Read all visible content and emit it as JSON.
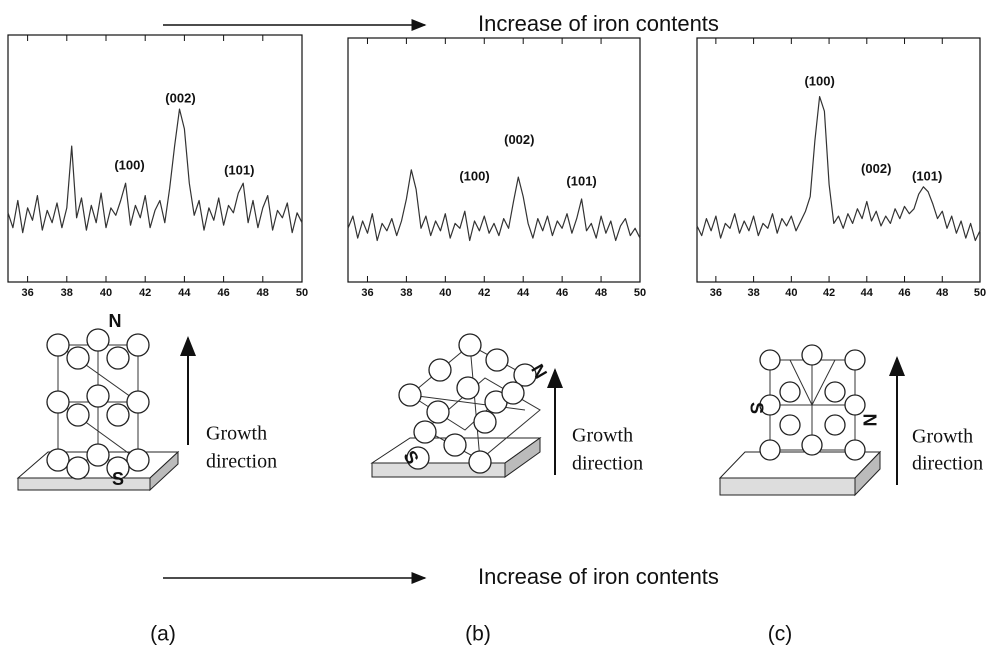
{
  "figure": {
    "top_caption": "Increase of iron contents",
    "bottom_caption": "Increase of iron contents",
    "panels": [
      {
        "label": "(a)",
        "north": "N",
        "south": "S",
        "growth": [
          "Growth",
          "direction"
        ]
      },
      {
        "label": "(b)",
        "north": "N",
        "south": "S",
        "growth": [
          "Growth",
          "direction"
        ]
      },
      {
        "label": "(c)",
        "north": "N",
        "south": "S",
        "growth": [
          "Growth",
          "direction"
        ]
      }
    ]
  },
  "chart_data": [
    {
      "type": "line",
      "xlim": [
        35,
        50
      ],
      "xticks": [
        36,
        38,
        40,
        42,
        44,
        46,
        48,
        50
      ],
      "ylim": [
        0,
        100
      ],
      "color": "#333333",
      "x": [
        35,
        35.25,
        35.5,
        35.75,
        36,
        36.25,
        36.5,
        36.75,
        37,
        37.25,
        37.5,
        37.75,
        38,
        38.25,
        38.5,
        38.75,
        39,
        39.25,
        39.5,
        39.75,
        40,
        40.25,
        40.5,
        40.75,
        41,
        41.25,
        41.5,
        41.75,
        42,
        42.25,
        42.5,
        42.75,
        43,
        43.25,
        43.5,
        43.75,
        44,
        44.25,
        44.5,
        44.75,
        45,
        45.25,
        45.5,
        45.75,
        46,
        46.25,
        46.5,
        46.75,
        47,
        47.25,
        47.5,
        47.75,
        48,
        48.25,
        48.5,
        48.75,
        49,
        49.25,
        49.5,
        49.75,
        50
      ],
      "values": [
        28,
        22,
        33,
        20,
        30,
        25,
        35,
        21,
        29,
        24,
        32,
        22,
        30,
        55,
        26,
        34,
        21,
        31,
        24,
        36,
        22,
        30,
        27,
        33,
        40,
        23,
        31,
        26,
        35,
        22,
        29,
        33,
        24,
        38,
        55,
        70,
        62,
        40,
        27,
        33,
        21,
        30,
        25,
        34,
        23,
        31,
        28,
        36,
        40,
        24,
        33,
        22,
        30,
        35,
        21,
        29,
        26,
        32,
        20,
        28,
        24
      ],
      "annotations": [
        {
          "text": "(100)",
          "x": 41.2,
          "y": 47
        },
        {
          "text": "(002)",
          "x": 43.8,
          "y": 74
        },
        {
          "text": "(101)",
          "x": 46.8,
          "y": 45
        }
      ]
    },
    {
      "type": "line",
      "xlim": [
        35,
        50
      ],
      "xticks": [
        36,
        38,
        40,
        42,
        44,
        46,
        48,
        50
      ],
      "ylim": [
        0,
        100
      ],
      "color": "#333333",
      "x": [
        35,
        35.25,
        35.5,
        35.75,
        36,
        36.25,
        36.5,
        36.75,
        37,
        37.25,
        37.5,
        37.75,
        38,
        38.25,
        38.5,
        38.75,
        39,
        39.25,
        39.5,
        39.75,
        40,
        40.25,
        40.5,
        40.75,
        41,
        41.25,
        41.5,
        41.75,
        42,
        42.25,
        42.5,
        42.75,
        43,
        43.25,
        43.5,
        43.75,
        44,
        44.25,
        44.5,
        44.75,
        45,
        45.25,
        45.5,
        45.75,
        46,
        46.25,
        46.5,
        46.75,
        47,
        47.25,
        47.5,
        47.75,
        48,
        48.25,
        48.5,
        48.75,
        49,
        49.25,
        49.5,
        49.75,
        50
      ],
      "values": [
        22,
        27,
        18,
        25,
        20,
        28,
        17,
        24,
        21,
        26,
        19,
        25,
        34,
        46,
        38,
        22,
        27,
        19,
        25,
        21,
        28,
        18,
        24,
        22,
        29,
        17,
        25,
        21,
        27,
        20,
        24,
        19,
        26,
        22,
        33,
        43,
        35,
        24,
        18,
        26,
        21,
        27,
        19,
        25,
        22,
        28,
        20,
        26,
        34,
        21,
        24,
        18,
        27,
        20,
        25,
        17,
        23,
        26,
        19,
        22,
        18
      ],
      "annotations": [
        {
          "text": "(100)",
          "x": 41.5,
          "y": 43
        },
        {
          "text": "(002)",
          "x": 43.8,
          "y": 58
        },
        {
          "text": "(101)",
          "x": 47,
          "y": 41
        }
      ]
    },
    {
      "type": "line",
      "xlim": [
        35,
        50
      ],
      "xticks": [
        36,
        38,
        40,
        42,
        44,
        46,
        48,
        50
      ],
      "ylim": [
        0,
        100
      ],
      "color": "#333333",
      "x": [
        35,
        35.25,
        35.5,
        35.75,
        36,
        36.25,
        36.5,
        36.75,
        37,
        37.25,
        37.5,
        37.75,
        38,
        38.25,
        38.5,
        38.75,
        39,
        39.25,
        39.5,
        39.75,
        40,
        40.25,
        40.5,
        40.75,
        41,
        41.25,
        41.5,
        41.75,
        42,
        42.25,
        42.5,
        42.75,
        43,
        43.25,
        43.5,
        43.75,
        44,
        44.25,
        44.5,
        44.75,
        45,
        45.25,
        45.5,
        45.75,
        46,
        46.25,
        46.5,
        46.75,
        47,
        47.25,
        47.5,
        47.75,
        48,
        48.25,
        48.5,
        48.75,
        49,
        49.25,
        49.5,
        49.75,
        50
      ],
      "values": [
        23,
        19,
        26,
        21,
        27,
        18,
        24,
        22,
        28,
        20,
        25,
        21,
        27,
        19,
        24,
        22,
        28,
        20,
        26,
        23,
        27,
        21,
        25,
        29,
        35,
        58,
        76,
        70,
        40,
        24,
        27,
        22,
        28,
        24,
        30,
        26,
        33,
        25,
        29,
        23,
        27,
        24,
        30,
        26,
        31,
        28,
        30,
        36,
        39,
        37,
        32,
        26,
        29,
        22,
        27,
        20,
        25,
        18,
        24,
        17,
        21
      ],
      "annotations": [
        {
          "text": "(100)",
          "x": 41.5,
          "y": 82
        },
        {
          "text": "(002)",
          "x": 44.5,
          "y": 46
        },
        {
          "text": "(101)",
          "x": 47.2,
          "y": 43
        }
      ]
    }
  ]
}
